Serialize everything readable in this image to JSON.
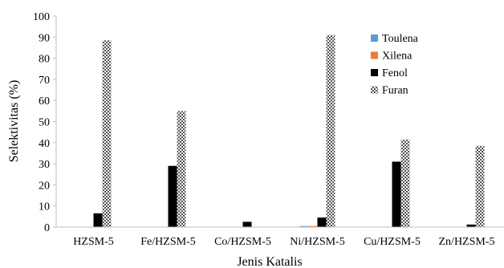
{
  "chart_data": {
    "type": "bar",
    "title": "",
    "xlabel": "Jenis Katalis",
    "ylabel": "Selektivitas (%)",
    "ylim": [
      0,
      100
    ],
    "yticks": [
      0,
      10,
      20,
      30,
      40,
      50,
      60,
      70,
      80,
      90,
      100
    ],
    "grid": false,
    "legend_position": "right",
    "categories": [
      "HZSM-5",
      "Fe/HZSM-5",
      "Co/HZSM-5",
      "Ni/HZSM-5",
      "Cu/HZSM-5",
      "Zn/HZSM-5"
    ],
    "series": [
      {
        "name": "Toulena",
        "color": "#5B9BD5",
        "pattern": "solid",
        "values": [
          0,
          0,
          0,
          0.5,
          0,
          0
        ]
      },
      {
        "name": "Xilena",
        "color": "#ED7D31",
        "pattern": "solid",
        "values": [
          0,
          0,
          0,
          0.5,
          0,
          0
        ]
      },
      {
        "name": "Fenol",
        "color": "#000000",
        "pattern": "solid",
        "values": [
          6.5,
          29,
          2.5,
          4.5,
          31,
          1.2
        ]
      },
      {
        "name": "Furan",
        "color": "#7f7f7f",
        "pattern": "checker",
        "values": [
          88.5,
          55,
          0,
          91,
          41.5,
          38.5
        ]
      }
    ]
  }
}
